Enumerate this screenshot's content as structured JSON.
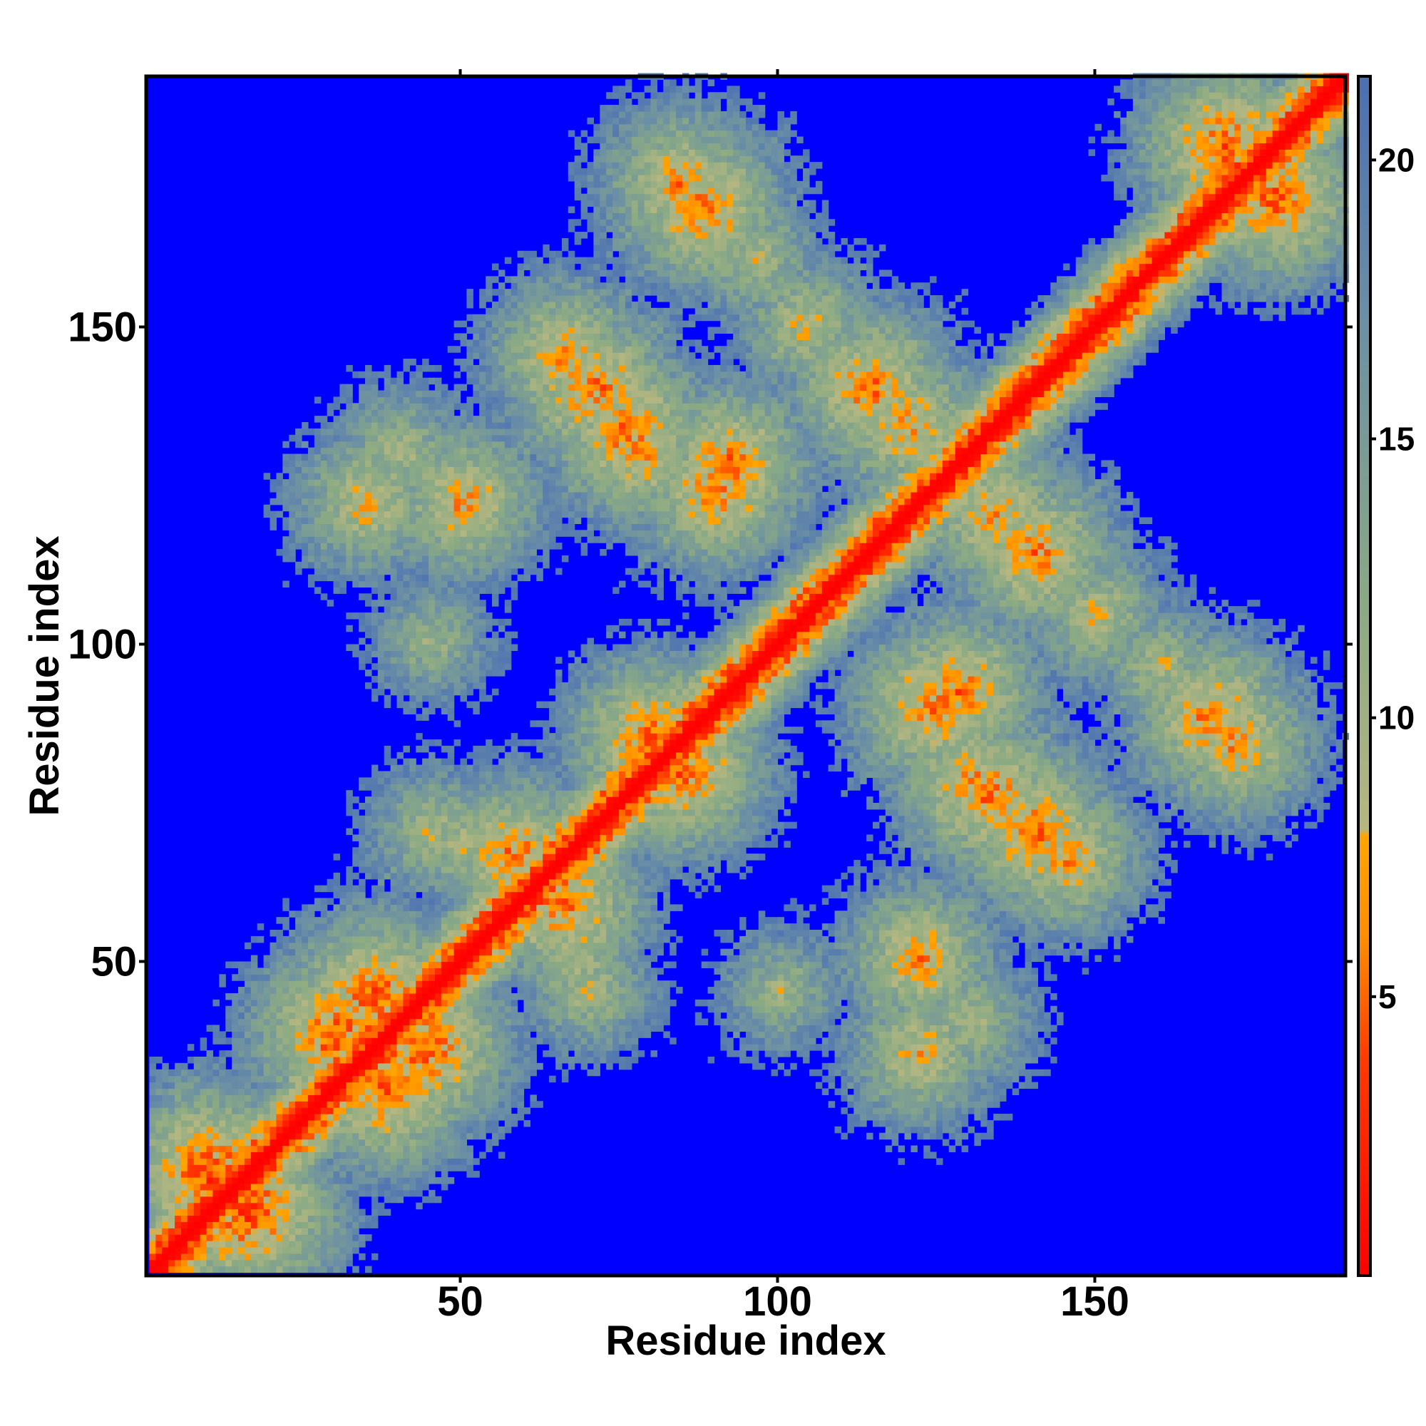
{
  "chart_data": {
    "type": "heatmap",
    "title": "",
    "xlabel": "Residue index",
    "ylabel": "Residue index",
    "xlim": [
      1,
      189
    ],
    "ylim": [
      1,
      189
    ],
    "x_ticks": [
      50,
      100,
      150
    ],
    "y_ticks": [
      50,
      100,
      150
    ],
    "grid": false,
    "legend": "colorbar-right",
    "colorbar": {
      "ticks": [
        5,
        10,
        15,
        20
      ],
      "range": [
        0,
        21.5
      ],
      "stops": [
        {
          "value": 0,
          "color": "#ff0000"
        },
        {
          "value": 4,
          "color": "#ff3a00"
        },
        {
          "value": 6,
          "color": "#ff8c00"
        },
        {
          "value": 7.9,
          "color": "#ffa500"
        },
        {
          "value": 8.0,
          "color": "#b7b780"
        },
        {
          "value": 12,
          "color": "#8aaa84"
        },
        {
          "value": 17,
          "color": "#6b8fa5"
        },
        {
          "value": 21.5,
          "color": "#4a6fb4"
        }
      ]
    },
    "background_color": "#0000ff",
    "matrix_description": "Symmetric residue-residue distance map; diagonal near 0, contacts above cutoff shown as blue",
    "diagonal_band": {
      "core": 0,
      "width": 3
    },
    "contact_features": [
      {
        "i": 10,
        "j": 16,
        "d": 3
      },
      {
        "i": 30,
        "j": 38,
        "d": 4
      },
      {
        "i": 36,
        "j": 44,
        "d": 4
      },
      {
        "i": 45,
        "j": 70,
        "d": 9
      },
      {
        "i": 50,
        "j": 68,
        "d": 9
      },
      {
        "i": 58,
        "j": 66,
        "d": 5
      },
      {
        "i": 35,
        "j": 122,
        "d": 7
      },
      {
        "i": 40,
        "j": 130,
        "d": 9
      },
      {
        "i": 45,
        "j": 100,
        "d": 10
      },
      {
        "i": 66,
        "j": 145,
        "d": 6
      },
      {
        "i": 70,
        "j": 140,
        "d": 5
      },
      {
        "i": 78,
        "j": 130,
        "d": 6
      },
      {
        "i": 84,
        "j": 172,
        "d": 6
      },
      {
        "i": 88,
        "j": 168,
        "d": 6
      },
      {
        "i": 96,
        "j": 160,
        "d": 9
      },
      {
        "i": 92,
        "j": 128,
        "d": 5
      },
      {
        "i": 104,
        "j": 150,
        "d": 8
      },
      {
        "i": 114,
        "j": 140,
        "d": 5
      },
      {
        "i": 120,
        "j": 134,
        "d": 6
      },
      {
        "i": 124,
        "j": 90,
        "d": 5
      },
      {
        "i": 133,
        "j": 76,
        "d": 5
      },
      {
        "i": 140,
        "j": 72,
        "d": 6
      },
      {
        "i": 122,
        "j": 50,
        "d": 6
      },
      {
        "i": 168,
        "j": 88,
        "d": 5
      },
      {
        "i": 170,
        "j": 178,
        "d": 4
      },
      {
        "i": 80,
        "j": 84,
        "d": 4
      }
    ]
  }
}
